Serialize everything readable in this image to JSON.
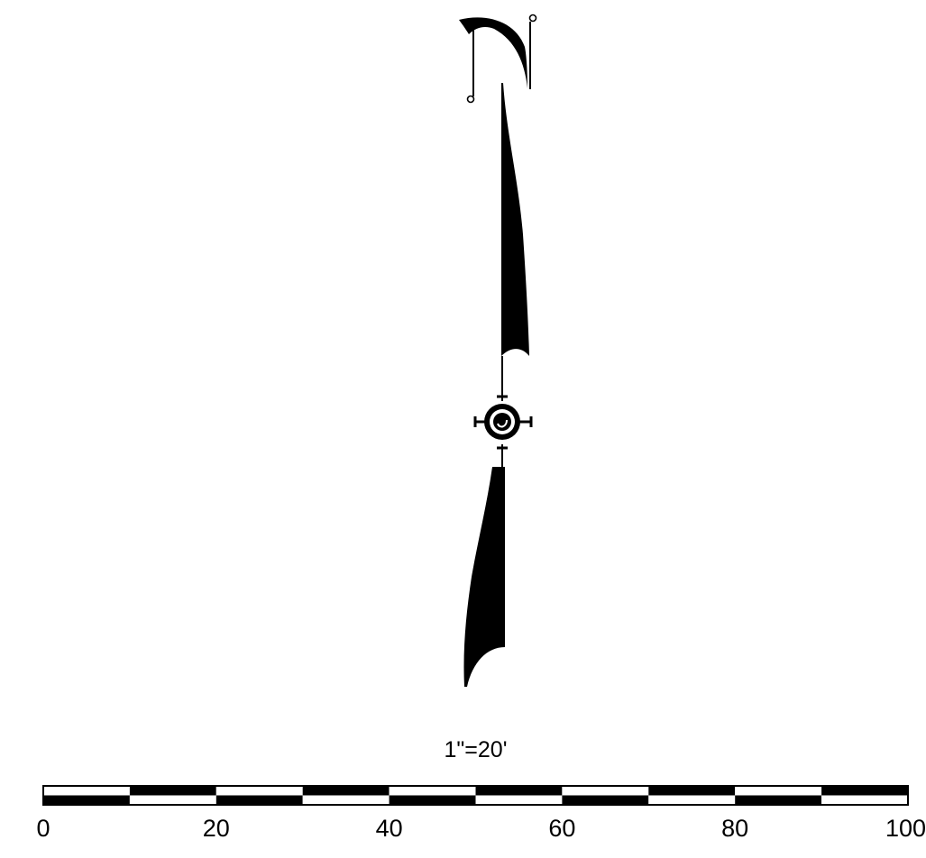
{
  "scale": {
    "ratio_label": "1\"=20'",
    "units_per_inch": 20,
    "unit": "feet",
    "ticks": [
      {
        "value": 0,
        "label": "0"
      },
      {
        "value": 20,
        "label": "20"
      },
      {
        "value": 40,
        "label": "40"
      },
      {
        "value": 60,
        "label": "60"
      },
      {
        "value": 80,
        "label": "80"
      },
      {
        "value": 100,
        "label": "100"
      }
    ],
    "range": [
      0,
      100
    ],
    "segment_size": 10
  },
  "colors": {
    "ink": "#000000",
    "background": "#ffffff"
  },
  "north_arrow": {
    "icon": "north-arrow-icon",
    "letter": "N"
  }
}
